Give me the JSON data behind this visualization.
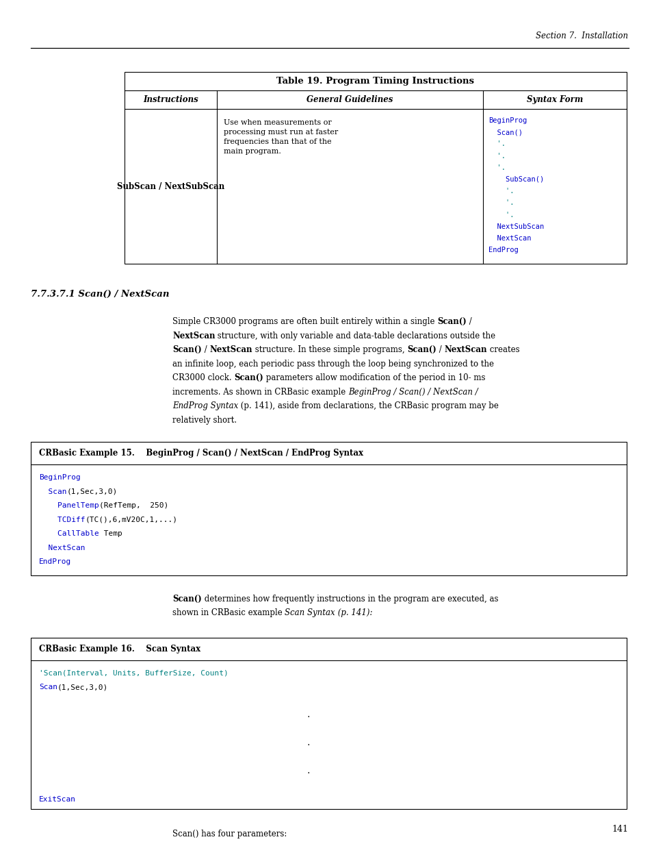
{
  "page_width": 9.54,
  "page_height": 12.35,
  "bg_color": "#ffffff",
  "header_text": "Section 7.  Installation",
  "page_number": "141",
  "table_title": "Table 19. Program Timing Instructions",
  "table_headers": [
    "Instructions",
    "General Guidelines",
    "Syntax Form"
  ],
  "col1_text": "SubScan / NextSubScan",
  "col2_text": "Use when measurements or\nprocessing must run at faster\nfrequencies than that of the\nmain program.",
  "col3_lines": [
    {
      "text": "BeginProg",
      "color": "#0000cc"
    },
    {
      "text": "  Scan()",
      "color": "#0000cc"
    },
    {
      "text": "  '.",
      "color": "#008080"
    },
    {
      "text": "  '.",
      "color": "#008080"
    },
    {
      "text": "  '.",
      "color": "#008080"
    },
    {
      "text": "    SubScan()",
      "color": "#0000cc"
    },
    {
      "text": "    '.",
      "color": "#008080"
    },
    {
      "text": "    '.",
      "color": "#008080"
    },
    {
      "text": "    '.",
      "color": "#008080"
    },
    {
      "text": "  NextSubScan",
      "color": "#0000cc"
    },
    {
      "text": "  NextScan",
      "color": "#0000cc"
    },
    {
      "text": "EndProg",
      "color": "#0000cc"
    }
  ],
  "section_heading": "7.7.3.7.1 Scan() / NextScan",
  "example15_title": "CRBasic Example 15.    BeginProg / Scan() / NextScan / EndProg Syntax",
  "example16_title": "CRBasic Example 16.    Scan Syntax",
  "bullet_intro": "Scan() has four parameters:",
  "blue": "#0000cc",
  "teal": "#008080"
}
